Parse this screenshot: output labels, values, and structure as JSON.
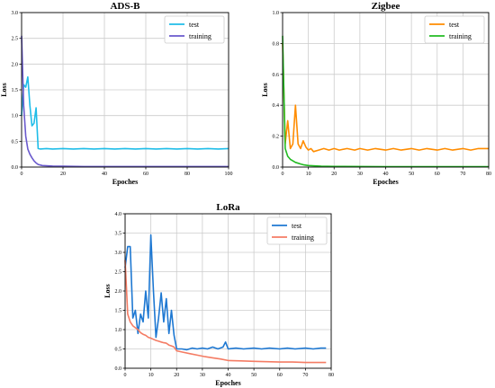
{
  "chart_data": [
    {
      "type": "line",
      "title": "ADS-B",
      "xlabel": "Epoches",
      "ylabel": "Loss",
      "xlim": [
        0,
        100
      ],
      "ylim": [
        0,
        3.0
      ],
      "xticks": [
        "0",
        "20",
        "40",
        "60",
        "80",
        "100"
      ],
      "yticks": [
        "0.0",
        "0.5",
        "1.0",
        "1.5",
        "2.0",
        "2.5",
        "3.0"
      ],
      "grid": true,
      "legend_position": "top-right",
      "series": [
        {
          "name": "test",
          "color": "#1fbde8",
          "points": [
            [
              0,
              1.0
            ],
            [
              1,
              1.6
            ],
            [
              2,
              1.55
            ],
            [
              3,
              1.75
            ],
            [
              4,
              1.2
            ],
            [
              5,
              0.8
            ],
            [
              6,
              0.85
            ],
            [
              7,
              1.15
            ],
            [
              8,
              0.36
            ],
            [
              9,
              0.35
            ],
            [
              12,
              0.36
            ],
            [
              15,
              0.35
            ],
            [
              20,
              0.36
            ],
            [
              25,
              0.35
            ],
            [
              30,
              0.36
            ],
            [
              35,
              0.35
            ],
            [
              40,
              0.36
            ],
            [
              45,
              0.35
            ],
            [
              50,
              0.36
            ],
            [
              55,
              0.35
            ],
            [
              60,
              0.36
            ],
            [
              65,
              0.35
            ],
            [
              70,
              0.36
            ],
            [
              75,
              0.35
            ],
            [
              80,
              0.36
            ],
            [
              85,
              0.35
            ],
            [
              90,
              0.36
            ],
            [
              95,
              0.35
            ],
            [
              100,
              0.36
            ]
          ]
        },
        {
          "name": "training",
          "color": "#6a5acd",
          "points": [
            [
              0,
              2.55
            ],
            [
              1,
              1.2
            ],
            [
              2,
              0.6
            ],
            [
              3,
              0.35
            ],
            [
              4,
              0.25
            ],
            [
              5,
              0.18
            ],
            [
              6,
              0.12
            ],
            [
              7,
              0.08
            ],
            [
              8,
              0.05
            ],
            [
              10,
              0.03
            ],
            [
              15,
              0.02
            ],
            [
              20,
              0.015
            ],
            [
              30,
              0.01
            ],
            [
              50,
              0.01
            ],
            [
              70,
              0.01
            ],
            [
              100,
              0.01
            ]
          ]
        }
      ]
    },
    {
      "type": "line",
      "title": "Zigbee",
      "xlabel": "Epoches",
      "ylabel": "Loss",
      "xlim": [
        0,
        80
      ],
      "ylim": [
        0,
        1.0
      ],
      "xticks": [
        "0",
        "10",
        "20",
        "30",
        "40",
        "50",
        "60",
        "70",
        "80"
      ],
      "yticks": [
        "0.0",
        "0.2",
        "0.4",
        "0.6",
        "0.8",
        "1.0"
      ],
      "grid": true,
      "legend_position": "top-right",
      "series": [
        {
          "name": "test",
          "color": "#ff8c00",
          "points": [
            [
              0,
              0.8
            ],
            [
              1,
              0.15
            ],
            [
              2,
              0.3
            ],
            [
              3,
              0.12
            ],
            [
              4,
              0.15
            ],
            [
              5,
              0.4
            ],
            [
              6,
              0.15
            ],
            [
              7,
              0.12
            ],
            [
              8,
              0.17
            ],
            [
              9,
              0.13
            ],
            [
              10,
              0.11
            ],
            [
              11,
              0.12
            ],
            [
              12,
              0.1
            ],
            [
              14,
              0.11
            ],
            [
              16,
              0.12
            ],
            [
              18,
              0.11
            ],
            [
              20,
              0.12
            ],
            [
              22,
              0.11
            ],
            [
              25,
              0.12
            ],
            [
              28,
              0.11
            ],
            [
              30,
              0.12
            ],
            [
              33,
              0.11
            ],
            [
              36,
              0.12
            ],
            [
              40,
              0.11
            ],
            [
              43,
              0.12
            ],
            [
              46,
              0.11
            ],
            [
              50,
              0.12
            ],
            [
              53,
              0.11
            ],
            [
              56,
              0.12
            ],
            [
              60,
              0.11
            ],
            [
              63,
              0.12
            ],
            [
              66,
              0.11
            ],
            [
              70,
              0.12
            ],
            [
              73,
              0.11
            ],
            [
              76,
              0.12
            ],
            [
              80,
              0.12
            ]
          ]
        },
        {
          "name": "training",
          "color": "#22bb22",
          "points": [
            [
              0,
              0.85
            ],
            [
              1,
              0.12
            ],
            [
              2,
              0.07
            ],
            [
              3,
              0.05
            ],
            [
              4,
              0.04
            ],
            [
              5,
              0.03
            ],
            [
              6,
              0.025
            ],
            [
              7,
              0.02
            ],
            [
              8,
              0.015
            ],
            [
              10,
              0.01
            ],
            [
              15,
              0.005
            ],
            [
              20,
              0.004
            ],
            [
              40,
              0.003
            ],
            [
              60,
              0.003
            ],
            [
              80,
              0.003
            ]
          ]
        }
      ]
    },
    {
      "type": "line",
      "title": "LoRa",
      "xlabel": "Epoches",
      "ylabel": "Loss",
      "xlim": [
        0,
        80
      ],
      "ylim": [
        0,
        4.0
      ],
      "xticks": [
        "0",
        "10",
        "20",
        "30",
        "40",
        "50",
        "60",
        "70",
        "80"
      ],
      "yticks": [
        "0.0",
        "0.5",
        "1.0",
        "1.5",
        "2.0",
        "2.5",
        "3.0",
        "3.5",
        "4.0"
      ],
      "grid": true,
      "legend_position": "top-right",
      "series": [
        {
          "name": "test",
          "color": "#1e78d2",
          "points": [
            [
              0,
              2.6
            ],
            [
              1,
              3.15
            ],
            [
              2,
              3.15
            ],
            [
              3,
              1.3
            ],
            [
              4,
              1.5
            ],
            [
              5,
              0.9
            ],
            [
              6,
              1.4
            ],
            [
              7,
              1.2
            ],
            [
              8,
              2.0
            ],
            [
              9,
              1.3
            ],
            [
              10,
              3.45
            ],
            [
              11,
              2.0
            ],
            [
              12,
              0.8
            ],
            [
              13,
              1.3
            ],
            [
              14,
              1.95
            ],
            [
              15,
              1.2
            ],
            [
              16,
              1.8
            ],
            [
              17,
              0.9
            ],
            [
              18,
              1.5
            ],
            [
              19,
              0.85
            ],
            [
              20,
              0.5
            ],
            [
              22,
              0.5
            ],
            [
              24,
              0.48
            ],
            [
              26,
              0.52
            ],
            [
              28,
              0.5
            ],
            [
              30,
              0.52
            ],
            [
              32,
              0.5
            ],
            [
              34,
              0.55
            ],
            [
              36,
              0.5
            ],
            [
              38,
              0.55
            ],
            [
              39,
              0.68
            ],
            [
              40,
              0.5
            ],
            [
              43,
              0.52
            ],
            [
              46,
              0.5
            ],
            [
              50,
              0.52
            ],
            [
              53,
              0.5
            ],
            [
              56,
              0.52
            ],
            [
              60,
              0.5
            ],
            [
              63,
              0.52
            ],
            [
              66,
              0.5
            ],
            [
              70,
              0.52
            ],
            [
              73,
              0.5
            ],
            [
              76,
              0.52
            ],
            [
              78,
              0.52
            ]
          ]
        },
        {
          "name": "training",
          "color": "#f47c64",
          "points": [
            [
              0,
              2.8
            ],
            [
              1,
              1.4
            ],
            [
              2,
              1.2
            ],
            [
              3,
              1.1
            ],
            [
              4,
              1.05
            ],
            [
              5,
              1.0
            ],
            [
              6,
              0.92
            ],
            [
              7,
              0.88
            ],
            [
              8,
              0.85
            ],
            [
              9,
              0.8
            ],
            [
              10,
              0.78
            ],
            [
              11,
              0.75
            ],
            [
              12,
              0.72
            ],
            [
              13,
              0.7
            ],
            [
              14,
              0.68
            ],
            [
              15,
              0.66
            ],
            [
              16,
              0.65
            ],
            [
              17,
              0.6
            ],
            [
              18,
              0.58
            ],
            [
              19,
              0.55
            ],
            [
              20,
              0.45
            ],
            [
              22,
              0.42
            ],
            [
              25,
              0.38
            ],
            [
              28,
              0.34
            ],
            [
              31,
              0.3
            ],
            [
              34,
              0.27
            ],
            [
              37,
              0.24
            ],
            [
              40,
              0.2
            ],
            [
              45,
              0.19
            ],
            [
              50,
              0.18
            ],
            [
              55,
              0.17
            ],
            [
              60,
              0.16
            ],
            [
              65,
              0.16
            ],
            [
              70,
              0.15
            ],
            [
              75,
              0.15
            ],
            [
              78,
              0.15
            ]
          ]
        }
      ]
    }
  ]
}
